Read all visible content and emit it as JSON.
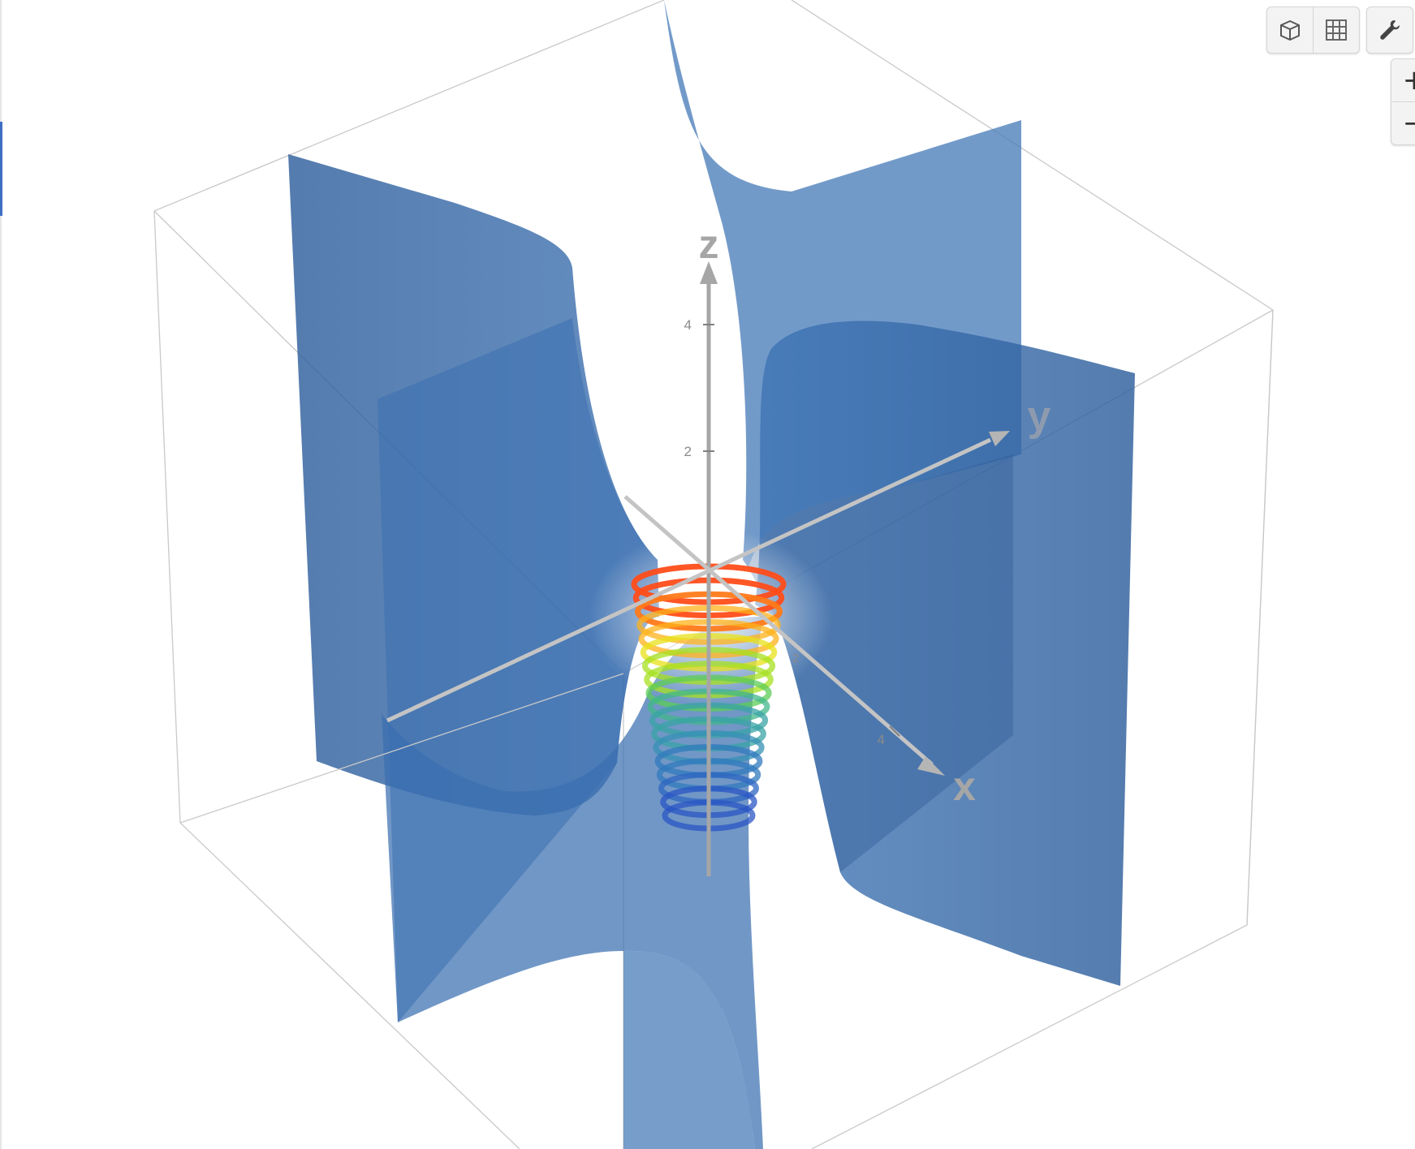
{
  "toolbar": {
    "view_toggle_icons": [
      "cube-icon",
      "grid-icon"
    ],
    "settings_icon": "wrench-icon"
  },
  "zoom": {
    "zoom_in_label": "+",
    "zoom_out_label": "−"
  },
  "axes": {
    "x_label": "x",
    "y_label": "y",
    "z_label": "z",
    "z_ticks": [
      "4",
      "2"
    ],
    "x_tick": "4",
    "x_tick_near": "2"
  },
  "colors": {
    "surface": "#3a6fb0",
    "axis": "#a6a6a6",
    "bounding_box": "#b9b9b9"
  }
}
